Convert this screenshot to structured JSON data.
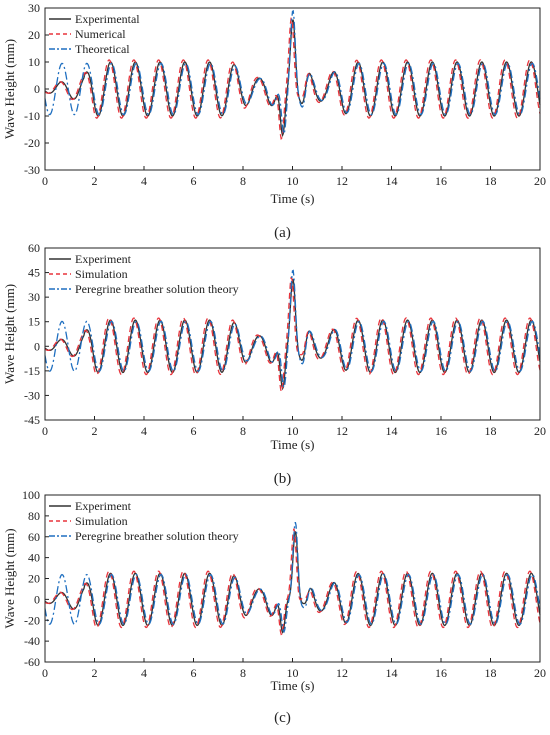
{
  "chart_data": [
    {
      "type": "line",
      "panel_label": "(a)",
      "xlabel": "Time (s)",
      "ylabel": "Wave Height (mm)",
      "xlim": [
        0,
        20
      ],
      "ylim": [
        -30,
        30
      ],
      "x_ticks": [
        0,
        2,
        4,
        6,
        8,
        10,
        12,
        14,
        16,
        18,
        20
      ],
      "y_ticks": [
        -30,
        -20,
        -10,
        0,
        10,
        20,
        30
      ],
      "legend_position": "top-left",
      "amplitude": 10,
      "peak": {
        "x": 10.0,
        "y": 30
      },
      "trough": {
        "x": 9.6,
        "y": -23
      },
      "series": [
        {
          "name": "Experimental",
          "style": "solid",
          "color": "#333333"
        },
        {
          "name": "Numerical",
          "style": "dashed",
          "color": "#e8333b"
        },
        {
          "name": "Theoretical",
          "style": "dashdot",
          "color": "#1f6fc0"
        }
      ]
    },
    {
      "type": "line",
      "panel_label": "(b)",
      "xlabel": "Time (s)",
      "ylabel": "Wave Height (mm)",
      "xlim": [
        0,
        20
      ],
      "ylim": [
        -45,
        60
      ],
      "x_ticks": [
        0,
        2,
        4,
        6,
        8,
        10,
        12,
        14,
        16,
        18,
        20
      ],
      "y_ticks": [
        -45,
        -30,
        -15,
        0,
        15,
        30,
        45,
        60
      ],
      "legend_position": "top-left",
      "amplitude": 16,
      "peak": {
        "x": 10.0,
        "y": 48
      },
      "trough": {
        "x": 9.6,
        "y": -35
      },
      "series": [
        {
          "name": "Experiment",
          "style": "solid",
          "color": "#333333"
        },
        {
          "name": "Simulation",
          "style": "dashed",
          "color": "#e8333b"
        },
        {
          "name": "Peregrine breather solution theory",
          "style": "dashdot",
          "color": "#1f6fc0"
        }
      ]
    },
    {
      "type": "line",
      "panel_label": "(c)",
      "xlabel": "Time (s)",
      "ylabel": "Wave Height (mm)",
      "xlim": [
        0,
        20
      ],
      "ylim": [
        -60,
        100
      ],
      "x_ticks": [
        0,
        2,
        4,
        6,
        8,
        10,
        12,
        14,
        16,
        18,
        20
      ],
      "y_ticks": [
        -60,
        -40,
        -20,
        0,
        20,
        40,
        60,
        80,
        100
      ],
      "legend_position": "top-left",
      "amplitude": 25,
      "peak": {
        "x": 10.1,
        "y": 80
      },
      "trough": {
        "x": 9.6,
        "y": -45
      },
      "series": [
        {
          "name": "Experiment",
          "style": "solid",
          "color": "#333333"
        },
        {
          "name": "Simulation",
          "style": "dashed",
          "color": "#e8333b"
        },
        {
          "name": "Peregrine breather solution theory",
          "style": "dashdot",
          "color": "#1f6fc0"
        }
      ]
    }
  ]
}
